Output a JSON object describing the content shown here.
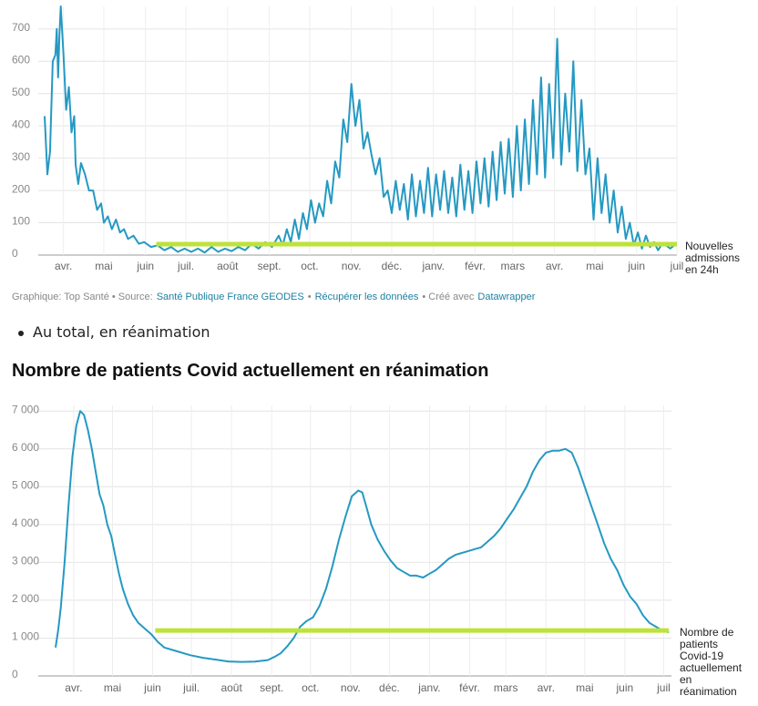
{
  "chart_data": [
    {
      "type": "line",
      "xlim": [
        -14,
        456
      ],
      "ylim": [
        0,
        770
      ],
      "yticks": [
        0,
        100,
        200,
        300,
        400,
        500,
        600,
        700
      ],
      "xticks": [
        {
          "value": 0,
          "label": "avr."
        },
        {
          "value": 30,
          "label": "mai"
        },
        {
          "value": 61,
          "label": "juin"
        },
        {
          "value": 91,
          "label": "juil."
        },
        {
          "value": 122,
          "label": "août"
        },
        {
          "value": 153,
          "label": "sept."
        },
        {
          "value": 183,
          "label": "oct."
        },
        {
          "value": 214,
          "label": "nov."
        },
        {
          "value": 244,
          "label": "déc."
        },
        {
          "value": 275,
          "label": "janv."
        },
        {
          "value": 306,
          "label": "févr."
        },
        {
          "value": 334,
          "label": "mars"
        },
        {
          "value": 365,
          "label": "avr."
        },
        {
          "value": 395,
          "label": "mai"
        },
        {
          "value": 426,
          "label": "juin"
        },
        {
          "value": 456,
          "label": "juil"
        }
      ],
      "grid": true,
      "color": "#2599c2",
      "x": [
        -14,
        -12,
        -10,
        -8,
        -6,
        -5,
        -4,
        -3,
        -2,
        0,
        2,
        4,
        6,
        8,
        9,
        11,
        13,
        16,
        19,
        22,
        25,
        28,
        30,
        33,
        36,
        39,
        42,
        45,
        48,
        52,
        56,
        60,
        65,
        70,
        75,
        80,
        85,
        90,
        95,
        100,
        105,
        110,
        115,
        120,
        125,
        130,
        135,
        140,
        145,
        150,
        155,
        160,
        163,
        166,
        169,
        172,
        175,
        178,
        181,
        184,
        187,
        190,
        193,
        196,
        199,
        202,
        205,
        208,
        211,
        214,
        217,
        220,
        223,
        226,
        229,
        232,
        235,
        238,
        241,
        244,
        247,
        250,
        253,
        256,
        259,
        262,
        265,
        268,
        271,
        274,
        277,
        280,
        283,
        286,
        289,
        292,
        295,
        298,
        301,
        304,
        307,
        310,
        313,
        316,
        319,
        322,
        325,
        328,
        331,
        334,
        337,
        340,
        343,
        346,
        349,
        352,
        355,
        358,
        361,
        364,
        367,
        370,
        373,
        376,
        379,
        382,
        385,
        388,
        391,
        394,
        397,
        400,
        403,
        406,
        409,
        412,
        415,
        418,
        421,
        424,
        427,
        430,
        433,
        436,
        439,
        442,
        445,
        448,
        451,
        454
      ],
      "values": [
        430,
        250,
        320,
        600,
        620,
        700,
        550,
        680,
        770,
        620,
        450,
        520,
        380,
        430,
        280,
        220,
        285,
        250,
        200,
        200,
        140,
        160,
        100,
        120,
        80,
        110,
        70,
        80,
        50,
        60,
        35,
        40,
        25,
        30,
        15,
        25,
        10,
        20,
        10,
        20,
        8,
        25,
        10,
        20,
        12,
        25,
        15,
        35,
        20,
        40,
        25,
        60,
        30,
        80,
        40,
        110,
        50,
        130,
        80,
        170,
        100,
        160,
        120,
        230,
        160,
        290,
        240,
        420,
        350,
        530,
        400,
        480,
        330,
        380,
        310,
        250,
        300,
        180,
        200,
        130,
        230,
        140,
        220,
        110,
        250,
        120,
        230,
        130,
        270,
        120,
        250,
        140,
        260,
        130,
        240,
        120,
        280,
        140,
        260,
        130,
        290,
        160,
        300,
        150,
        320,
        170,
        350,
        190,
        360,
        180,
        400,
        200,
        420,
        220,
        480,
        250,
        550,
        240,
        530,
        300,
        670,
        280,
        500,
        320,
        600,
        260,
        480,
        250,
        330,
        110,
        300,
        130,
        250,
        100,
        200,
        70,
        150,
        50,
        100,
        30,
        70,
        20,
        60,
        25,
        40,
        15,
        35,
        30,
        20,
        30
      ],
      "reference": {
        "value": 34,
        "x": [
          69,
          456
        ],
        "color": "#bde33a",
        "label": "Nouvelles admissions en 24h"
      }
    },
    {
      "type": "line",
      "title": "Nombre de patients Covid actuellement en réanimation",
      "xlim": [
        -14,
        462
      ],
      "ylim": [
        0,
        7150
      ],
      "yticks": [
        {
          "value": 0,
          "label": "0"
        },
        {
          "value": 1000,
          "label": "1 000"
        },
        {
          "value": 2000,
          "label": "2 000"
        },
        {
          "value": 3000,
          "label": "3 000"
        },
        {
          "value": 4000,
          "label": "4 000"
        },
        {
          "value": 5000,
          "label": "5 000"
        },
        {
          "value": 6000,
          "label": "6 000"
        },
        {
          "value": 7000,
          "label": "7 000"
        }
      ],
      "xticks": [
        {
          "value": 0,
          "label": "avr."
        },
        {
          "value": 30,
          "label": "mai"
        },
        {
          "value": 61,
          "label": "juin"
        },
        {
          "value": 91,
          "label": "juil."
        },
        {
          "value": 122,
          "label": "août"
        },
        {
          "value": 153,
          "label": "sept."
        },
        {
          "value": 183,
          "label": "oct."
        },
        {
          "value": 214,
          "label": "nov."
        },
        {
          "value": 244,
          "label": "déc."
        },
        {
          "value": 275,
          "label": "janv."
        },
        {
          "value": 306,
          "label": "févr."
        },
        {
          "value": 334,
          "label": "mars"
        },
        {
          "value": 365,
          "label": "avr."
        },
        {
          "value": 395,
          "label": "mai"
        },
        {
          "value": 426,
          "label": "juin"
        },
        {
          "value": 456,
          "label": "juil"
        }
      ],
      "grid": true,
      "color": "#2599c2",
      "x": [
        -14,
        -12,
        -10,
        -7,
        -4,
        -1,
        2,
        5,
        8,
        11,
        14,
        17,
        20,
        23,
        26,
        29,
        32,
        35,
        38,
        42,
        46,
        50,
        55,
        60,
        65,
        70,
        80,
        90,
        100,
        110,
        120,
        130,
        140,
        150,
        155,
        160,
        165,
        170,
        175,
        180,
        185,
        190,
        195,
        200,
        205,
        210,
        215,
        220,
        223,
        226,
        230,
        235,
        240,
        245,
        250,
        255,
        260,
        265,
        270,
        275,
        280,
        285,
        290,
        295,
        300,
        305,
        310,
        315,
        320,
        325,
        330,
        335,
        340,
        345,
        350,
        355,
        360,
        365,
        370,
        375,
        380,
        385,
        390,
        395,
        400,
        405,
        410,
        415,
        420,
        425,
        430,
        435,
        440,
        445,
        450,
        455,
        460
      ],
      "values": [
        750,
        1200,
        1800,
        3000,
        4500,
        5800,
        6600,
        7000,
        6900,
        6500,
        6000,
        5400,
        4800,
        4500,
        4000,
        3700,
        3200,
        2700,
        2300,
        1900,
        1600,
        1400,
        1250,
        1100,
        900,
        750,
        650,
        550,
        480,
        430,
        380,
        370,
        380,
        420,
        500,
        600,
        780,
        1000,
        1300,
        1450,
        1550,
        1850,
        2300,
        2900,
        3600,
        4200,
        4750,
        4900,
        4850,
        4500,
        4000,
        3600,
        3300,
        3050,
        2850,
        2750,
        2650,
        2650,
        2600,
        2700,
        2800,
        2950,
        3100,
        3200,
        3250,
        3300,
        3350,
        3400,
        3550,
        3700,
        3900,
        4150,
        4400,
        4700,
        5000,
        5400,
        5700,
        5900,
        5950,
        5950,
        6000,
        5900,
        5500,
        5000,
        4500,
        4000,
        3500,
        3100,
        2800,
        2400,
        2100,
        1900,
        1600,
        1400,
        1300,
        1200,
        1150
      ],
      "reference": {
        "value": 1200,
        "x": [
          63,
          460
        ],
        "color": "#bde33a",
        "label": "Nombre de patients Covid-19 actuellement en réanimation"
      }
    }
  ],
  "footer": [
    {
      "text": "Graphique: Top Santé • Source:"
    },
    {
      "text": "Santé Publique France GEODES",
      "link": true
    },
    {
      "text": "•"
    },
    {
      "text": "Récupérer les données",
      "link": true
    },
    {
      "text": "• Créé avec"
    },
    {
      "text": "Datawrapper",
      "link": true
    }
  ],
  "bullet": "Au total, en réanimation"
}
